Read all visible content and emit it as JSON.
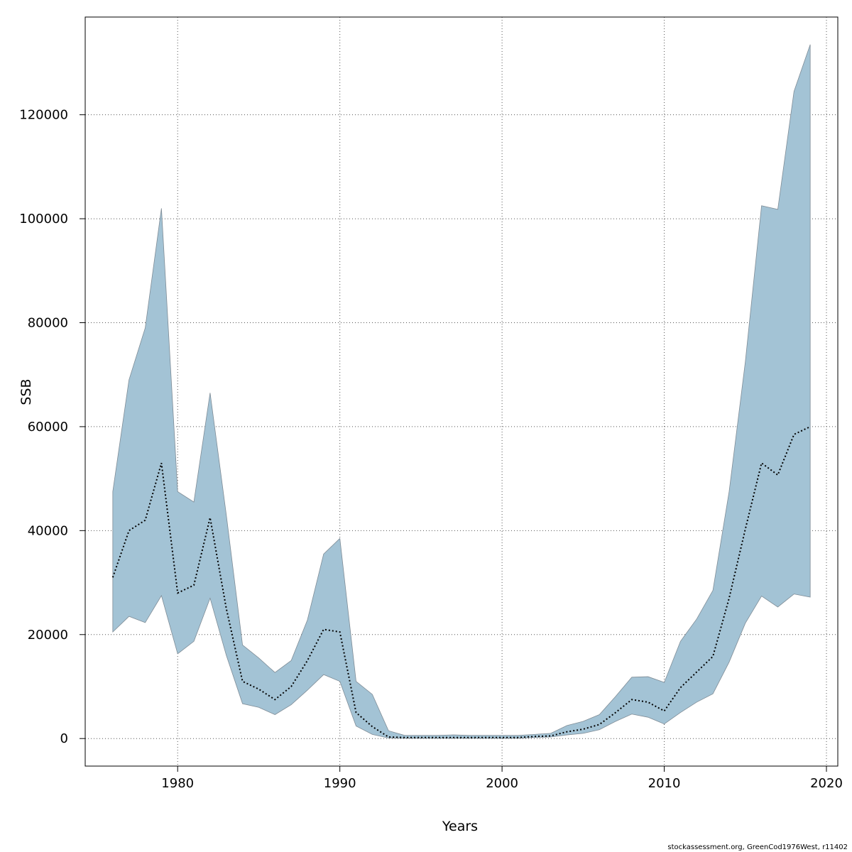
{
  "chart_data": {
    "type": "area",
    "xlabel": "Years",
    "ylabel": "SSB",
    "xlim": [
      1974.3,
      2020.7
    ],
    "ylim": [
      -5300,
      138800
    ],
    "x_ticks": [
      1980,
      1990,
      2000,
      2010,
      2020
    ],
    "y_ticks": [
      0,
      20000,
      40000,
      60000,
      80000,
      100000,
      120000
    ],
    "grid": true,
    "colors": {
      "band": "#a3c3d5",
      "band_edge": "#7f8c96",
      "line": "#000000",
      "grid": "#555555"
    },
    "series": [
      {
        "role": "estimate",
        "x": [
          1976,
          1977,
          1978,
          1979,
          1980,
          1981,
          1982,
          1983,
          1984,
          1985,
          1986,
          1987,
          1988,
          1989,
          1990,
          1991,
          1992,
          1993,
          1994,
          1995,
          1996,
          1997,
          1998,
          1999,
          2000,
          2001,
          2002,
          2003,
          2004,
          2005,
          2006,
          2007,
          2008,
          2009,
          2010,
          2011,
          2012,
          2013,
          2014,
          2015,
          2016,
          2017,
          2018,
          2019
        ],
        "values": [
          31000,
          40000,
          42000,
          53000,
          28000,
          29500,
          42500,
          25000,
          11000,
          9500,
          7500,
          10000,
          15000,
          21000,
          20500,
          5000,
          2300,
          300,
          200,
          200,
          200,
          200,
          200,
          200,
          200,
          200,
          400,
          500,
          1300,
          1800,
          2700,
          5000,
          7500,
          7000,
          5300,
          9800,
          12800,
          15800,
          27000,
          40300,
          53000,
          50700,
          58500,
          60000
        ]
      },
      {
        "role": "upper",
        "x": [
          1976,
          1977,
          1978,
          1979,
          1980,
          1981,
          1982,
          1983,
          1984,
          1985,
          1986,
          1987,
          1988,
          1989,
          1990,
          1991,
          1992,
          1993,
          1994,
          1995,
          1996,
          1997,
          1998,
          1999,
          2000,
          2001,
          2002,
          2003,
          2004,
          2005,
          2006,
          2007,
          2008,
          2009,
          2010,
          2011,
          2012,
          2013,
          2014,
          2015,
          2016,
          2017,
          2018,
          2019
        ],
        "values": [
          47500,
          69000,
          79000,
          102000,
          47500,
          45500,
          66500,
          43000,
          18000,
          15500,
          12700,
          15000,
          22800,
          35500,
          38500,
          11000,
          8500,
          1500,
          600,
          600,
          600,
          700,
          600,
          600,
          600,
          600,
          800,
          1000,
          2500,
          3300,
          4600,
          8100,
          11800,
          11900,
          10800,
          18700,
          23000,
          28500,
          47500,
          72500,
          102500,
          101800,
          124500,
          133500
        ]
      },
      {
        "role": "lower",
        "x": [
          1976,
          1977,
          1978,
          1979,
          1980,
          1981,
          1982,
          1983,
          1984,
          1985,
          1986,
          1987,
          1988,
          1989,
          1990,
          1991,
          1992,
          1993,
          1994,
          1995,
          1996,
          1997,
          1998,
          1999,
          2000,
          2001,
          2002,
          2003,
          2004,
          2005,
          2006,
          2007,
          2008,
          2009,
          2010,
          2011,
          2012,
          2013,
          2014,
          2015,
          2016,
          2017,
          2018,
          2019
        ],
        "values": [
          20500,
          23500,
          22300,
          27500,
          16300,
          18700,
          27000,
          16000,
          6700,
          6000,
          4600,
          6500,
          9300,
          12300,
          11000,
          2400,
          800,
          100,
          50,
          50,
          50,
          50,
          50,
          50,
          50,
          50,
          200,
          300,
          700,
          1000,
          1700,
          3300,
          4700,
          4100,
          2800,
          5000,
          7000,
          8600,
          14700,
          22200,
          27400,
          25300,
          27800,
          27200
        ]
      }
    ]
  },
  "footer": {
    "credit": "stockassessment.org, GreenCod1976West, r11402"
  }
}
